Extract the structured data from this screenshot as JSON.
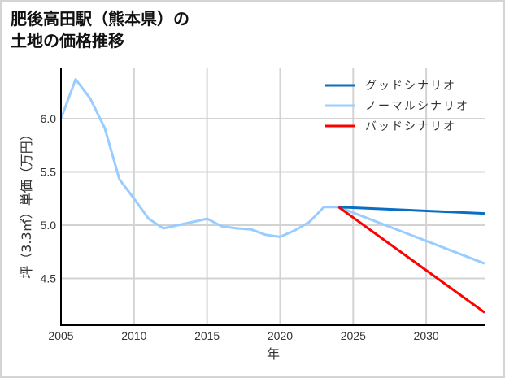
{
  "chart_data": {
    "type": "line",
    "title": "肥後高田駅（熊本県）の土地の価格推移",
    "title_lines": [
      "肥後高田駅（熊本県）の",
      "土地の価格推移"
    ],
    "xlabel": "年",
    "ylabel": "坪（3.3㎡）単価（万円）",
    "xlim": [
      2005,
      2034
    ],
    "ylim": [
      4.2,
      6.5
    ],
    "xticks": [
      2005,
      2010,
      2015,
      2020,
      2025,
      2030
    ],
    "yticks": [
      4.5,
      5.0,
      5.5,
      6.0
    ],
    "ytick_labels": [
      "4.5",
      "5.0",
      "5.5",
      "6.0"
    ],
    "grid": true,
    "legend_position": "upper right",
    "series": [
      {
        "name": "グッドシナリオ",
        "color": "#0a6fc2",
        "x": [
          2024,
          2034
        ],
        "values": [
          5.17,
          5.11
        ]
      },
      {
        "name": "ノーマルシナリオ",
        "color": "#99ccff",
        "x": [
          2005,
          2006,
          2007,
          2008,
          2009,
          2010,
          2011,
          2012,
          2013,
          2014,
          2015,
          2016,
          2017,
          2018,
          2019,
          2020,
          2021,
          2022,
          2023,
          2024,
          2034
        ],
        "values": [
          6.0,
          6.37,
          6.19,
          5.91,
          5.43,
          5.25,
          5.06,
          4.97,
          5.0,
          5.03,
          5.06,
          4.99,
          4.97,
          4.96,
          4.91,
          4.89,
          4.95,
          5.03,
          5.17,
          5.17,
          4.64
        ]
      },
      {
        "name": "バッドシナリオ",
        "color": "#ff0000",
        "x": [
          2024,
          2034
        ],
        "values": [
          5.17,
          4.18
        ]
      }
    ]
  }
}
